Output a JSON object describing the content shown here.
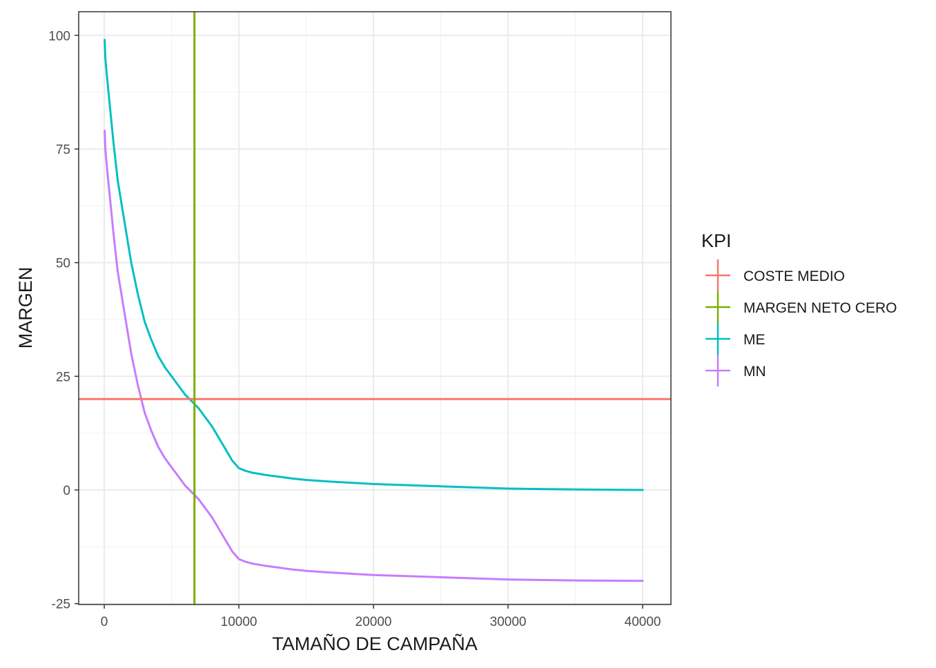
{
  "chart_data": {
    "type": "line",
    "xlabel": "TAMAÑO DE CAMPAÑA",
    "ylabel": "MARGEN",
    "xlim": [
      -1900,
      42100
    ],
    "ylim": [
      -25.2,
      105.2
    ],
    "x_ticks": [
      0,
      10000,
      20000,
      30000,
      40000
    ],
    "x_tick_labels": [
      "0",
      "10000",
      "20000",
      "30000",
      "40000"
    ],
    "y_ticks": [
      -25,
      0,
      25,
      50,
      75,
      100
    ],
    "y_tick_labels": [
      "-25",
      "0",
      "25",
      "50",
      "75",
      "100"
    ],
    "grid": true,
    "legend": {
      "title": "KPI",
      "placement": "right",
      "entries": [
        {
          "label": "COSTE MEDIO",
          "color": "#F8766D"
        },
        {
          "label": "MARGEN NETO CERO",
          "color": "#7CAE00"
        },
        {
          "label": "ME",
          "color": "#00BFC4"
        },
        {
          "label": "MN",
          "color": "#C77CFF"
        }
      ]
    },
    "reference_lines": [
      {
        "name": "COSTE MEDIO",
        "orientation": "horizontal",
        "value": 20,
        "color": "#F8766D"
      },
      {
        "name": "MARGEN NETO CERO",
        "orientation": "vertical",
        "value": 6700,
        "color": "#7CAE00"
      }
    ],
    "series": [
      {
        "name": "ME",
        "color": "#00BFC4",
        "x": [
          30,
          80,
          200,
          400,
          700,
          1000,
          1500,
          2000,
          2500,
          3000,
          3500,
          4000,
          4500,
          5000,
          5500,
          6000,
          6500,
          7000,
          7500,
          8000,
          8500,
          9000,
          9500,
          10000,
          10500,
          11000,
          12000,
          13000,
          14000,
          15000,
          17000,
          20000,
          25000,
          30000,
          35000,
          40000
        ],
        "y": [
          99,
          95,
          91,
          85,
          76,
          68,
          59,
          50,
          43,
          37,
          33,
          29.5,
          27,
          25,
          23,
          21,
          19.5,
          18,
          16,
          14,
          11.5,
          9,
          6.5,
          4.8,
          4.2,
          3.8,
          3.3,
          2.9,
          2.5,
          2.2,
          1.8,
          1.3,
          0.8,
          0.3,
          0.1,
          0
        ]
      },
      {
        "name": "MN",
        "color": "#C77CFF",
        "x": [
          30,
          80,
          200,
          400,
          700,
          1000,
          1500,
          2000,
          2500,
          3000,
          3500,
          4000,
          4500,
          5000,
          5500,
          6000,
          6500,
          7000,
          7500,
          8000,
          8500,
          9000,
          9500,
          10000,
          10500,
          11000,
          12000,
          13000,
          14000,
          15000,
          17000,
          20000,
          25000,
          30000,
          35000,
          40000
        ],
        "y": [
          79,
          75,
          71,
          65,
          56,
          48,
          39,
          30,
          23,
          17,
          13,
          9.5,
          7,
          5,
          3,
          1,
          -0.5,
          -2,
          -4,
          -6,
          -8.5,
          -11,
          -13.5,
          -15.2,
          -15.8,
          -16.2,
          -16.7,
          -17.1,
          -17.5,
          -17.8,
          -18.2,
          -18.7,
          -19.2,
          -19.7,
          -19.9,
          -20
        ]
      }
    ]
  }
}
